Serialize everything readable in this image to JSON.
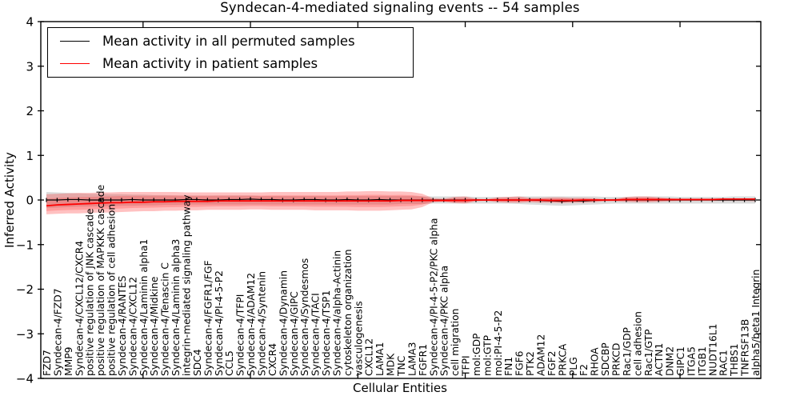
{
  "chart_data": {
    "type": "line",
    "title": "Syndecan-4-mediated signaling events -- 54 samples",
    "xlabel": "Cellular Entities",
    "ylabel": "Inferred Activity",
    "ylim": [
      -4,
      4
    ],
    "yticks": [
      4,
      3,
      2,
      1,
      0,
      -1,
      -2,
      -3,
      -4
    ],
    "grid": false,
    "legend_position": "upper left",
    "colors": {
      "permuted": "#000000",
      "patient": "#ff0000",
      "permuted_band": "#b0b0b0",
      "patient_band": "#ff2020"
    },
    "categories": [
      "FZD7",
      "Syndecan-4/FZD7",
      "MMP9",
      "Syndecan-4/CXCL12/CXCR4",
      "positive regulation of JNK cascade",
      "positive regulation of MAPKKK cascade",
      "positive regulation of cell adhesion",
      "Syndecan-4/RANTES",
      "Syndecan-4/CXCL12",
      "Syndecan-4/Laminin alpha1",
      "Syndecan-4/Midkine",
      "Syndecan-4/Tenascin C",
      "Syndecan-4/Laminin alpha3",
      "integrin-mediated signaling pathway",
      "SDC4",
      "Syndecan-4/FGFR1/FGF",
      "Syndecan-4/PI-4-5-P2",
      "CCL5",
      "Syndecan-4/TFPI",
      "Syndecan-4/ADAM12",
      "Syndecan-4/Syntenin",
      "CXCR4",
      "Syndecan-4/Dynamin",
      "Syndecan-4/GIPC",
      "Syndecan-4/Syndesmos",
      "Syndecan-4/TACI",
      "Syndecan-4/TSP1",
      "Syndecan-4/alpha-Actinin",
      "cytoskeleton organization",
      "vasculogenesis",
      "CXCL12",
      "LAMA1",
      "MDK",
      "TNC",
      "LAMA3",
      "FGFR1",
      "Syndecan-4/PI-4-5-P2/PKC alpha",
      "Syndecan-4/PKC alpha",
      "cell migration",
      "TFPI",
      "mol:GDP",
      "mol:GTP",
      "mol:PI-4-5-P2",
      "FN1",
      "FGF6",
      "PTK2",
      "ADAM12",
      "FGF2",
      "PRKCA",
      "PLG",
      "F2",
      "RHOA",
      "SDCBP",
      "PRKCD",
      "Rac1/GDP",
      "cell adhesion",
      "Rac1/GTP",
      "ACTN1",
      "DNM2",
      "GIPC1",
      "ITGA5",
      "ITGB1",
      "NUDT16L1",
      "RAC1",
      "THBS1",
      "TNFRSF13B",
      "alpha5/beta1 Integrin"
    ],
    "series": [
      {
        "name": "Mean activity in all permuted samples",
        "color": "#000000",
        "values": [
          0.0,
          0.0,
          0.01,
          0.01,
          0.0,
          0.0,
          0.0,
          0.0,
          0.01,
          0.0,
          0.0,
          0.0,
          0.0,
          0.01,
          0.01,
          0.0,
          0.0,
          0.01,
          0.01,
          0.02,
          0.01,
          0.01,
          0.0,
          0.0,
          0.01,
          0.01,
          0.0,
          0.0,
          0.01,
          0.0,
          0.0,
          0.01,
          0.0,
          0.0,
          0.0,
          0.0,
          0.0,
          0.0,
          0.0,
          0.0,
          0.0,
          0.0,
          0.0,
          0.0,
          0.0,
          0.0,
          -0.01,
          -0.02,
          -0.03,
          -0.02,
          -0.02,
          -0.01,
          0.0,
          0.0,
          0.0,
          0.0,
          0.0,
          0.0,
          0.0,
          0.0,
          0.0,
          0.0,
          0.0,
          0.0,
          0.0,
          0.0,
          0.0
        ]
      },
      {
        "name": "Mean activity in patient samples",
        "color": "#ff0000",
        "values": [
          -0.13,
          -0.11,
          -0.1,
          -0.09,
          -0.08,
          -0.07,
          -0.06,
          -0.06,
          -0.05,
          -0.05,
          -0.04,
          -0.04,
          -0.03,
          -0.03,
          -0.03,
          -0.03,
          -0.02,
          -0.02,
          -0.02,
          -0.02,
          -0.02,
          -0.02,
          -0.02,
          -0.02,
          -0.02,
          -0.02,
          -0.02,
          -0.02,
          -0.02,
          -0.02,
          -0.02,
          -0.02,
          -0.02,
          -0.01,
          -0.01,
          -0.01,
          -0.01,
          -0.01,
          -0.01,
          -0.01,
          0.0,
          0.0,
          0.0,
          0.0,
          0.0,
          0.0,
          0.0,
          -0.01,
          -0.01,
          -0.01,
          0.0,
          0.0,
          0.0,
          0.0,
          0.01,
          0.01,
          0.01,
          0.01,
          0.01,
          0.01,
          0.01,
          0.01,
          0.01,
          0.02,
          0.02,
          0.02,
          0.02
        ]
      }
    ],
    "bands": [
      {
        "name": "permuted-sample-range",
        "upper": [
          0.18,
          0.17,
          0.16,
          0.15,
          0.14,
          0.14,
          0.13,
          0.13,
          0.12,
          0.12,
          0.11,
          0.11,
          0.1,
          0.1,
          0.1,
          0.1,
          0.1,
          0.1,
          0.1,
          0.1,
          0.09,
          0.09,
          0.09,
          0.09,
          0.09,
          0.09,
          0.09,
          0.09,
          0.09,
          0.09,
          0.09,
          0.09,
          0.09,
          0.09,
          0.09,
          0.08,
          0.08,
          0.08,
          0.08,
          0.08,
          0.07,
          0.07,
          0.07,
          0.07,
          0.08,
          0.08,
          0.08,
          0.08,
          0.08,
          0.08,
          0.08,
          0.08,
          0.07,
          0.07,
          0.07,
          0.08,
          0.08,
          0.08,
          0.08,
          0.07,
          0.07,
          0.07,
          0.07,
          0.07,
          0.08,
          0.08,
          0.08
        ],
        "lower": [
          -0.18,
          -0.17,
          -0.16,
          -0.15,
          -0.15,
          -0.14,
          -0.14,
          -0.13,
          -0.13,
          -0.12,
          -0.12,
          -0.11,
          -0.11,
          -0.1,
          -0.1,
          -0.1,
          -0.1,
          -0.1,
          -0.1,
          -0.1,
          -0.1,
          -0.1,
          -0.1,
          -0.1,
          -0.1,
          -0.1,
          -0.1,
          -0.1,
          -0.1,
          -0.1,
          -0.1,
          -0.1,
          -0.1,
          -0.09,
          -0.09,
          -0.09,
          -0.08,
          -0.08,
          -0.08,
          -0.08,
          -0.08,
          -0.08,
          -0.08,
          -0.08,
          -0.09,
          -0.1,
          -0.11,
          -0.12,
          -0.13,
          -0.12,
          -0.11,
          -0.1,
          -0.09,
          -0.08,
          -0.08,
          -0.08,
          -0.08,
          -0.08,
          -0.08,
          -0.08,
          -0.08,
          -0.08,
          -0.08,
          -0.08,
          -0.08,
          -0.08,
          -0.08
        ]
      },
      {
        "name": "patient-sample-range",
        "upper": [
          0.13,
          0.14,
          0.15,
          0.16,
          0.16,
          0.17,
          0.17,
          0.18,
          0.18,
          0.18,
          0.18,
          0.18,
          0.18,
          0.17,
          0.17,
          0.17,
          0.17,
          0.17,
          0.17,
          0.17,
          0.17,
          0.18,
          0.18,
          0.18,
          0.18,
          0.18,
          0.18,
          0.18,
          0.19,
          0.19,
          0.2,
          0.2,
          0.19,
          0.19,
          0.18,
          0.14,
          0.04,
          0.03,
          0.07,
          0.08,
          0.03,
          0.02,
          0.06,
          0.07,
          0.08,
          0.05,
          0.05,
          0.06,
          0.06,
          0.05,
          0.05,
          0.04,
          0.02,
          0.03,
          0.07,
          0.08,
          0.08,
          0.06,
          0.04,
          0.03,
          0.03,
          0.03,
          0.03,
          0.03,
          0.03,
          0.03,
          0.04
        ],
        "lower": [
          -0.32,
          -0.31,
          -0.3,
          -0.3,
          -0.29,
          -0.28,
          -0.28,
          -0.27,
          -0.26,
          -0.25,
          -0.25,
          -0.24,
          -0.24,
          -0.23,
          -0.23,
          -0.22,
          -0.22,
          -0.22,
          -0.22,
          -0.21,
          -0.21,
          -0.22,
          -0.22,
          -0.22,
          -0.22,
          -0.23,
          -0.23,
          -0.23,
          -0.23,
          -0.24,
          -0.24,
          -0.24,
          -0.23,
          -0.22,
          -0.21,
          -0.16,
          -0.05,
          -0.04,
          -0.07,
          -0.08,
          -0.03,
          -0.02,
          -0.05,
          -0.06,
          -0.06,
          -0.05,
          -0.06,
          -0.06,
          -0.07,
          -0.06,
          -0.06,
          -0.05,
          -0.03,
          -0.03,
          -0.04,
          -0.05,
          -0.05,
          -0.04,
          -0.03,
          -0.02,
          -0.02,
          -0.02,
          -0.02,
          -0.02,
          -0.02,
          -0.02,
          -0.03
        ]
      }
    ],
    "x_major_tick_indices": [
      9,
      19,
      29,
      39,
      49,
      59
    ]
  }
}
